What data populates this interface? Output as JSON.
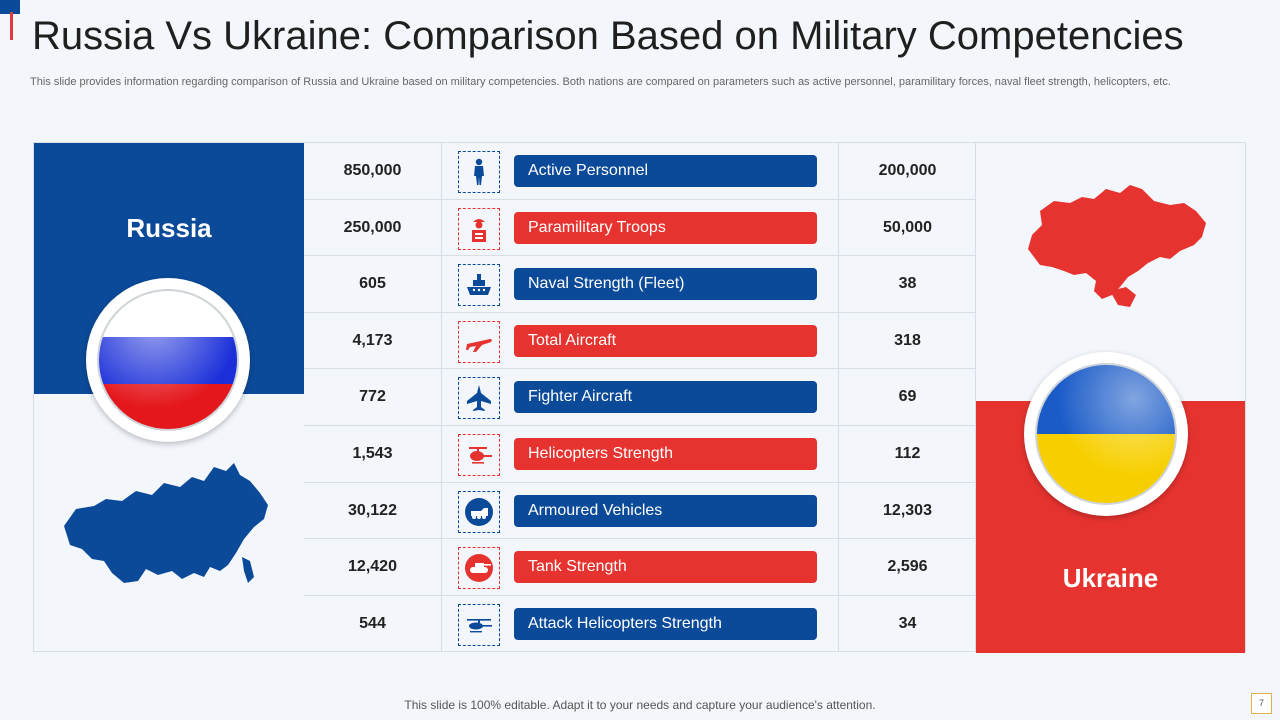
{
  "title": "Russia Vs Ukraine: Comparison Based on Military Competencies",
  "subtitle": "This slide provides information regarding comparison of Russia and Ukraine based on military competencies. Both nations are compared on parameters such as active personnel, paramilitary forces, naval fleet strength, helicopters, etc.",
  "colors": {
    "blue": "#0b4a99",
    "red": "#e6332f"
  },
  "left_country": {
    "name": "Russia"
  },
  "right_country": {
    "name": "Ukraine"
  },
  "rows": [
    {
      "label": "Active Personnel",
      "russia": "850,000",
      "ukraine": "200,000",
      "icon": "soldier-icon",
      "color": "blue"
    },
    {
      "label": "Paramilitary Troops",
      "russia": "250,000",
      "ukraine": "50,000",
      "icon": "paramilitary-icon",
      "color": "red"
    },
    {
      "label": "Naval Strength (Fleet)",
      "russia": "605",
      "ukraine": "38",
      "icon": "ship-icon",
      "color": "blue"
    },
    {
      "label": "Total Aircraft",
      "russia": "4,173",
      "ukraine": "318",
      "icon": "airplane-icon",
      "color": "red"
    },
    {
      "label": "Fighter Aircraft",
      "russia": "772",
      "ukraine": "69",
      "icon": "fighter-jet-icon",
      "color": "blue"
    },
    {
      "label": "Helicopters Strength",
      "russia": "1,543",
      "ukraine": "112",
      "icon": "helicopter-icon",
      "color": "red"
    },
    {
      "label": "Armoured Vehicles",
      "russia": "30,122",
      "ukraine": "12,303",
      "icon": "armoured-vehicle-icon",
      "color": "blue"
    },
    {
      "label": "Tank Strength",
      "russia": "12,420",
      "ukraine": "2,596",
      "icon": "tank-icon",
      "color": "red"
    },
    {
      "label": "Attack Helicopters Strength",
      "russia": "544",
      "ukraine": "34",
      "icon": "attack-helicopter-icon",
      "color": "blue"
    }
  ],
  "footer": "This slide is 100% editable. Adapt it to your needs and capture your audience's attention.",
  "page_number": "7"
}
